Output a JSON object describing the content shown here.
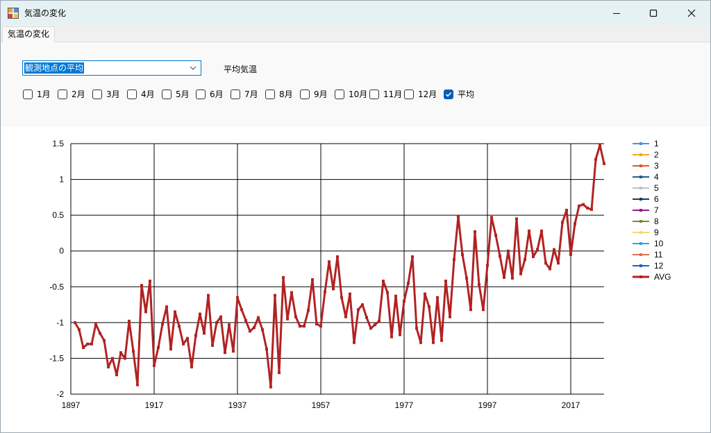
{
  "window": {
    "title": "気温の変化",
    "icon": "app-icon",
    "controls": [
      "minimize-icon",
      "maximize-icon",
      "close-icon"
    ]
  },
  "tabs": [
    {
      "label": "気温の変化",
      "selected": true
    }
  ],
  "controls": {
    "station_select": {
      "value": "観測地点の平均",
      "icon": "chevron-down-icon"
    },
    "parameter_label": "平均気温",
    "month_checkboxes": [
      {
        "label": "1月",
        "checked": false
      },
      {
        "label": "2月",
        "checked": false
      },
      {
        "label": "3月",
        "checked": false
      },
      {
        "label": "4月",
        "checked": false
      },
      {
        "label": "5月",
        "checked": false
      },
      {
        "label": "6月",
        "checked": false
      },
      {
        "label": "7月",
        "checked": false
      },
      {
        "label": "8月",
        "checked": false
      },
      {
        "label": "9月",
        "checked": false
      },
      {
        "label": "10月",
        "checked": false
      },
      {
        "label": "11月",
        "checked": false
      },
      {
        "label": "12月",
        "checked": false
      },
      {
        "label": "平均",
        "checked": true
      }
    ]
  },
  "colors": {
    "titlebar": "#e6f1f4",
    "accent": "#0078d4",
    "avg_series": "#b22222",
    "grid": "#000000"
  },
  "chart_data": {
    "type": "line",
    "title": "",
    "xlabel": "",
    "ylabel": "",
    "xlim": [
      1897,
      2025
    ],
    "ylim": [
      -2,
      1.5
    ],
    "x_ticks": [
      "1897",
      "1917",
      "1937",
      "1957",
      "1977",
      "1997",
      "2017"
    ],
    "y_ticks": [
      "1.5",
      "1",
      "0.5",
      "0",
      "-0.5",
      "-1",
      "-1.5",
      "-2"
    ],
    "grid": true,
    "legend_position": "right",
    "legend": [
      {
        "label": "1",
        "color": "#4a90e2"
      },
      {
        "label": "2",
        "color": "#f5a623"
      },
      {
        "label": "3",
        "color": "#e8572a"
      },
      {
        "label": "4",
        "color": "#1f5f8b"
      },
      {
        "label": "5",
        "color": "#c0c0c0"
      },
      {
        "label": "6",
        "color": "#1c3a5e"
      },
      {
        "label": "7",
        "color": "#8e1a8e"
      },
      {
        "label": "8",
        "color": "#7d8a2e"
      },
      {
        "label": "9",
        "color": "#f7d774"
      },
      {
        "label": "10",
        "color": "#2aa7e0"
      },
      {
        "label": "11",
        "color": "#e07050"
      },
      {
        "label": "12",
        "color": "#1a63c7"
      },
      {
        "label": "AVG",
        "color": "#b22222"
      }
    ],
    "series": [
      {
        "name": "AVG",
        "color": "#b22222",
        "x_start": 1898,
        "values": [
          -1.0,
          -1.1,
          -1.35,
          -1.3,
          -1.3,
          -1.02,
          -1.15,
          -1.25,
          -1.62,
          -1.5,
          -1.73,
          -1.42,
          -1.5,
          -0.98,
          -1.4,
          -1.87,
          -0.48,
          -0.85,
          -0.42,
          -1.6,
          -1.35,
          -1.02,
          -0.78,
          -1.37,
          -0.85,
          -1.05,
          -1.3,
          -1.22,
          -1.62,
          -1.18,
          -0.88,
          -1.15,
          -0.62,
          -1.32,
          -1.0,
          -0.92,
          -1.42,
          -1.03,
          -1.4,
          -0.65,
          -0.82,
          -0.97,
          -1.12,
          -1.07,
          -0.93,
          -1.1,
          -1.37,
          -1.9,
          -0.62,
          -1.7,
          -0.37,
          -0.95,
          -0.58,
          -0.92,
          -1.05,
          -1.05,
          -0.83,
          -0.4,
          -1.02,
          -1.05,
          -0.57,
          -0.15,
          -0.53,
          -0.08,
          -0.65,
          -0.92,
          -0.6,
          -1.28,
          -0.82,
          -0.75,
          -0.93,
          -1.08,
          -1.03,
          -0.98,
          -0.42,
          -0.58,
          -1.2,
          -0.63,
          -1.17,
          -0.7,
          -0.45,
          -0.08,
          -1.08,
          -1.28,
          -0.6,
          -0.78,
          -1.28,
          -0.65,
          -1.25,
          -0.42,
          -0.92,
          -0.12,
          0.48,
          -0.05,
          -0.38,
          -0.82,
          0.27,
          -0.47,
          -0.82,
          -0.2,
          0.47,
          0.22,
          -0.07,
          -0.37,
          0.0,
          -0.38,
          0.45,
          -0.32,
          -0.12,
          0.28,
          -0.08,
          0.02,
          0.28,
          -0.17,
          -0.25,
          0.02,
          -0.17,
          0.4,
          0.57,
          -0.05,
          0.38,
          0.63,
          0.65,
          0.6,
          0.58,
          1.28,
          1.48,
          1.22
        ]
      }
    ]
  }
}
